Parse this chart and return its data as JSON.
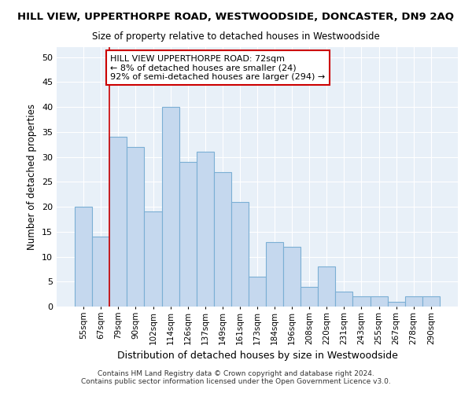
{
  "title": "HILL VIEW, UPPERTHORPE ROAD, WESTWOODSIDE, DONCASTER, DN9 2AQ",
  "subtitle": "Size of property relative to detached houses in Westwoodside",
  "xlabel": "Distribution of detached houses by size in Westwoodside",
  "ylabel": "Number of detached properties",
  "categories": [
    "55sqm",
    "67sqm",
    "79sqm",
    "90sqm",
    "102sqm",
    "114sqm",
    "126sqm",
    "137sqm",
    "149sqm",
    "161sqm",
    "173sqm",
    "184sqm",
    "196sqm",
    "208sqm",
    "220sqm",
    "231sqm",
    "243sqm",
    "255sqm",
    "267sqm",
    "278sqm",
    "290sqm"
  ],
  "values": [
    20,
    14,
    34,
    32,
    19,
    40,
    29,
    31,
    27,
    21,
    6,
    13,
    12,
    4,
    8,
    3,
    2,
    2,
    1,
    2,
    2
  ],
  "bar_color": "#c5d8ee",
  "bar_edge_color": "#7bafd4",
  "plot_bg_color": "#e8f0f8",
  "fig_bg_color": "#ffffff",
  "grid_color": "#ffffff",
  "redline_x": 1.5,
  "annotation_text": "HILL VIEW UPPERTHORPE ROAD: 72sqm\n← 8% of detached houses are smaller (24)\n92% of semi-detached houses are larger (294) →",
  "annotation_box_color": "#ffffff",
  "annotation_box_edge": "#cc0000",
  "footnote": "Contains HM Land Registry data © Crown copyright and database right 2024.\nContains public sector information licensed under the Open Government Licence v3.0.",
  "ylim": [
    0,
    52
  ],
  "yticks": [
    0,
    5,
    10,
    15,
    20,
    25,
    30,
    35,
    40,
    45,
    50
  ]
}
